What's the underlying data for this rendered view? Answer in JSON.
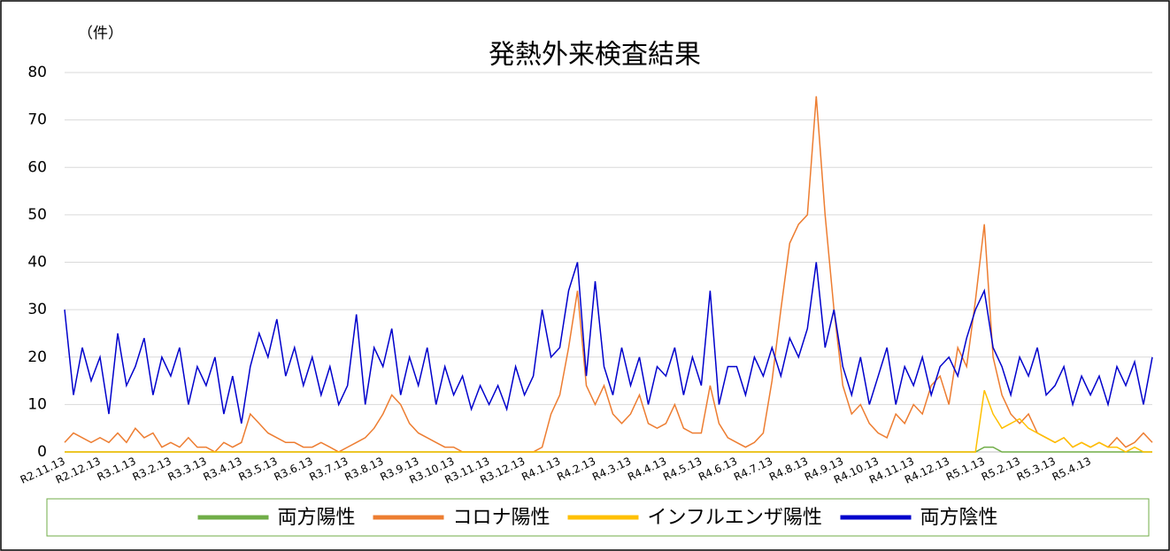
{
  "chart_data": {
    "type": "line",
    "title": "発熱外来検査結果",
    "y_label": "（件）",
    "categories": [
      "R2.11.13",
      null,
      null,
      null,
      "R2.12.13",
      null,
      null,
      null,
      "R3.1.13",
      null,
      null,
      null,
      "R3.2.13",
      null,
      null,
      null,
      "R3.3.13",
      null,
      null,
      null,
      "R3.4.13",
      null,
      null,
      null,
      "R3.5.13",
      null,
      null,
      null,
      "R3.6.13",
      null,
      null,
      null,
      "R3.7.13",
      null,
      null,
      null,
      "R3.8.13",
      null,
      null,
      null,
      "R3.9.13",
      null,
      null,
      null,
      "R3.10.13",
      null,
      null,
      null,
      "R3.11.13",
      null,
      null,
      null,
      "R3.12.13",
      null,
      null,
      null,
      "R4.1.13",
      null,
      null,
      null,
      "R4.2.13",
      null,
      null,
      null,
      "R4.3.13",
      null,
      null,
      null,
      "R4.4.13",
      null,
      null,
      null,
      "R4.5.13",
      null,
      null,
      null,
      "R4.6.13",
      null,
      null,
      null,
      "R4.7.13",
      null,
      null,
      null,
      "R4.8.13",
      null,
      null,
      null,
      "R4.9.13",
      null,
      null,
      null,
      "R4.10.13",
      null,
      null,
      null,
      "R4.11.13",
      null,
      null,
      null,
      "R4.12.13",
      null,
      null,
      null,
      "R5.1.13",
      null,
      null,
      null,
      "R5.2.13",
      null,
      null,
      null,
      "R5.3.13",
      null,
      null,
      null,
      "R5.4.13",
      null,
      null,
      null,
      null,
      null,
      null,
      null
    ],
    "series": [
      {
        "name": "両方陽性",
        "color": "#70ad47",
        "values": [
          0,
          0,
          0,
          0,
          0,
          0,
          0,
          0,
          0,
          0,
          0,
          0,
          0,
          0,
          0,
          0,
          0,
          0,
          0,
          0,
          0,
          0,
          0,
          0,
          0,
          0,
          0,
          0,
          0,
          0,
          0,
          0,
          0,
          0,
          0,
          0,
          0,
          0,
          0,
          0,
          0,
          0,
          0,
          0,
          0,
          0,
          0,
          0,
          0,
          0,
          0,
          0,
          0,
          0,
          0,
          0,
          0,
          0,
          0,
          0,
          0,
          0,
          0,
          0,
          0,
          0,
          0,
          0,
          0,
          0,
          0,
          0,
          0,
          0,
          0,
          0,
          0,
          0,
          0,
          0,
          0,
          0,
          0,
          0,
          0,
          0,
          0,
          0,
          0,
          0,
          0,
          0,
          0,
          0,
          0,
          0,
          0,
          0,
          0,
          0,
          0,
          0,
          0,
          0,
          1,
          1,
          0,
          0,
          0,
          0,
          0,
          0,
          0,
          0,
          0,
          0,
          0,
          0,
          0,
          0,
          0,
          0,
          0,
          0
        ]
      },
      {
        "name": "コロナ陽性",
        "color": "#ed7d31",
        "values": [
          2,
          4,
          3,
          2,
          3,
          2,
          4,
          2,
          5,
          3,
          4,
          1,
          2,
          1,
          3,
          1,
          1,
          0,
          2,
          1,
          2,
          8,
          6,
          4,
          3,
          2,
          2,
          1,
          1,
          2,
          1,
          0,
          1,
          2,
          3,
          5,
          8,
          12,
          10,
          6,
          4,
          3,
          2,
          1,
          1,
          0,
          0,
          0,
          0,
          0,
          0,
          0,
          0,
          0,
          1,
          8,
          12,
          22,
          34,
          14,
          10,
          14,
          8,
          6,
          8,
          12,
          6,
          5,
          6,
          10,
          5,
          4,
          4,
          14,
          6,
          3,
          2,
          1,
          2,
          4,
          15,
          30,
          44,
          48,
          50,
          75,
          50,
          30,
          14,
          8,
          10,
          6,
          4,
          3,
          8,
          6,
          10,
          8,
          14,
          16,
          10,
          22,
          18,
          32,
          48,
          20,
          12,
          8,
          6,
          8,
          4,
          3,
          2,
          3,
          1,
          2,
          1,
          2,
          1,
          3,
          1,
          2,
          4,
          2
        ]
      },
      {
        "name": "インフルエンザ陽性",
        "color": "#ffc000",
        "values": [
          0,
          0,
          0,
          0,
          0,
          0,
          0,
          0,
          0,
          0,
          0,
          0,
          0,
          0,
          0,
          0,
          0,
          0,
          0,
          0,
          0,
          0,
          0,
          0,
          0,
          0,
          0,
          0,
          0,
          0,
          0,
          0,
          0,
          0,
          0,
          0,
          0,
          0,
          0,
          0,
          0,
          0,
          0,
          0,
          0,
          0,
          0,
          0,
          0,
          0,
          0,
          0,
          0,
          0,
          0,
          0,
          0,
          0,
          0,
          0,
          0,
          0,
          0,
          0,
          0,
          0,
          0,
          0,
          0,
          0,
          0,
          0,
          0,
          0,
          0,
          0,
          0,
          0,
          0,
          0,
          0,
          0,
          0,
          0,
          0,
          0,
          0,
          0,
          0,
          0,
          0,
          0,
          0,
          0,
          0,
          0,
          0,
          0,
          0,
          0,
          0,
          0,
          0,
          0,
          13,
          8,
          5,
          6,
          7,
          5,
          4,
          3,
          2,
          3,
          1,
          2,
          1,
          2,
          1,
          1,
          0,
          1,
          0,
          0
        ]
      },
      {
        "name": "両方陰性",
        "color": "#0000cc",
        "values": [
          30,
          12,
          22,
          15,
          20,
          8,
          25,
          14,
          18,
          24,
          12,
          20,
          16,
          22,
          10,
          18,
          14,
          20,
          8,
          16,
          6,
          18,
          25,
          20,
          28,
          16,
          22,
          14,
          20,
          12,
          18,
          10,
          14,
          29,
          10,
          22,
          18,
          26,
          12,
          20,
          14,
          22,
          10,
          18,
          12,
          16,
          9,
          14,
          10,
          14,
          9,
          18,
          12,
          16,
          30,
          20,
          22,
          34,
          40,
          16,
          36,
          18,
          12,
          22,
          14,
          20,
          10,
          18,
          16,
          22,
          12,
          20,
          14,
          34,
          10,
          18,
          18,
          12,
          20,
          16,
          22,
          16,
          24,
          20,
          26,
          40,
          22,
          30,
          18,
          12,
          20,
          10,
          16,
          22,
          10,
          18,
          14,
          20,
          12,
          18,
          20,
          16,
          24,
          30,
          34,
          22,
          18,
          12,
          20,
          16,
          22,
          12,
          14,
          18,
          10,
          16,
          12,
          16,
          10,
          18,
          14,
          19,
          10,
          20
        ]
      }
    ],
    "ylim": [
      0,
      80
    ],
    "yticks": [
      0,
      10,
      20,
      30,
      40,
      50,
      60,
      70,
      80
    ],
    "grid": true,
    "legend": "bottom"
  }
}
